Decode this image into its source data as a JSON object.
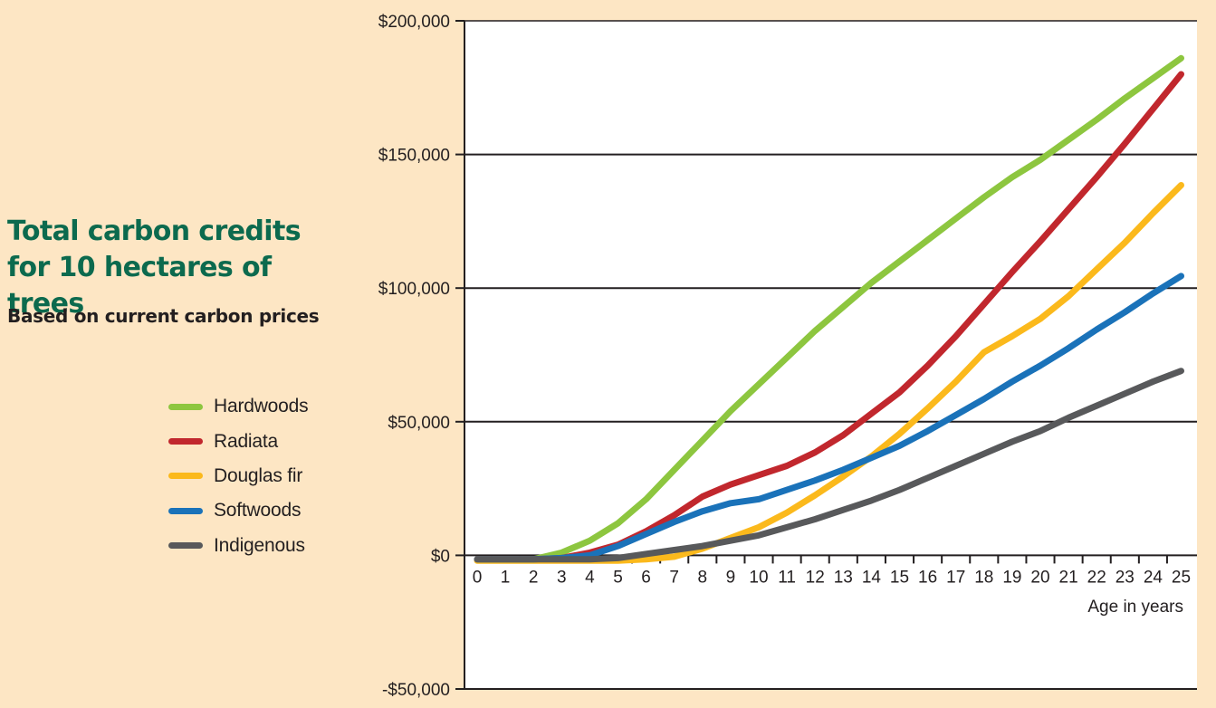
{
  "chart_data": {
    "type": "line",
    "title": "Total carbon credits for 10 hectares of trees",
    "subtitle": "Based on current carbon prices",
    "xlabel": "Age in years",
    "ylabel": "",
    "x": [
      0,
      1,
      2,
      3,
      4,
      5,
      6,
      7,
      8,
      9,
      10,
      11,
      12,
      13,
      14,
      15,
      16,
      17,
      18,
      19,
      20,
      21,
      22,
      23,
      24,
      25
    ],
    "ylim": [
      -50000,
      200000
    ],
    "yticks": [
      200000,
      150000,
      100000,
      50000,
      0,
      -50000
    ],
    "ytick_labels": [
      "$200,000",
      "$150,000",
      "$100,000",
      "$50,000",
      "$0",
      "-$50,000"
    ],
    "negative_tick_color": "#d0202e",
    "gridlines": [
      150000,
      100000,
      50000
    ],
    "legend_position": "left",
    "series": [
      {
        "name": "Hardwoods",
        "color": "#8dc63f",
        "values": [
          -1500,
          -1500,
          -1500,
          1000,
          5500,
          12000,
          21000,
          32000,
          43000,
          54000,
          64000,
          74000,
          84000,
          93000,
          102000,
          110000,
          118000,
          126000,
          134000,
          141500,
          148000,
          155500,
          163000,
          171000,
          178500,
          186000
        ]
      },
      {
        "name": "Radiata",
        "color": "#c1272d",
        "values": [
          -1500,
          -1500,
          -1500,
          -1000,
          1000,
          4000,
          9000,
          15000,
          22000,
          26500,
          30000,
          33500,
          38500,
          45000,
          53000,
          61000,
          71000,
          82000,
          94000,
          106000,
          117500,
          129500,
          141500,
          154000,
          167000,
          180000
        ]
      },
      {
        "name": "Douglas fir",
        "color": "#fbb91c",
        "values": [
          -2000,
          -2000,
          -2000,
          -2000,
          -2000,
          -2000,
          -1500,
          -500,
          2500,
          6500,
          10500,
          16000,
          22500,
          29500,
          37000,
          45500,
          55000,
          65000,
          76000,
          82000,
          88500,
          97000,
          107000,
          117000,
          128000,
          138500
        ]
      },
      {
        "name": "Softwoods",
        "color": "#1a72b9",
        "values": [
          -1500,
          -1500,
          -1500,
          -1000,
          0,
          3500,
          8000,
          12500,
          16500,
          19500,
          21000,
          24500,
          28000,
          32000,
          36500,
          41000,
          46500,
          52500,
          58500,
          65000,
          71000,
          77500,
          84500,
          91000,
          98000,
          104500
        ]
      },
      {
        "name": "Indigenous",
        "color": "#58595b",
        "values": [
          -1500,
          -1500,
          -1500,
          -1500,
          -1500,
          -1000,
          500,
          2000,
          3500,
          5500,
          7500,
          10500,
          13500,
          17000,
          20500,
          24500,
          29000,
          33500,
          38000,
          42500,
          46500,
          51500,
          56000,
          60500,
          65000,
          69000
        ]
      }
    ]
  }
}
